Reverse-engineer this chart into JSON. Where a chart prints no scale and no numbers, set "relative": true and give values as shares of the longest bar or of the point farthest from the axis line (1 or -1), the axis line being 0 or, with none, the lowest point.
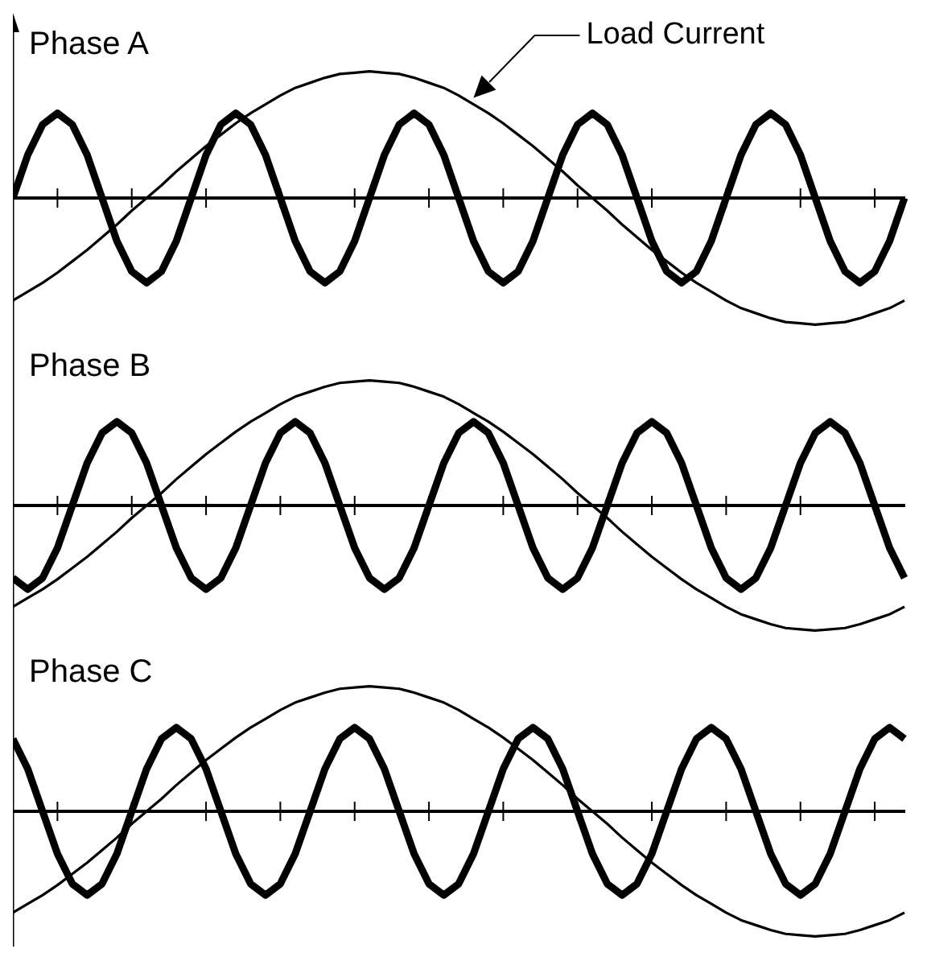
{
  "chart_data": [
    {
      "type": "line",
      "title": "Phase A",
      "relative": true,
      "marker": "none",
      "categories": [
        null,
        null,
        null,
        null,
        null,
        null,
        null,
        null,
        null,
        null,
        null,
        null,
        null,
        null,
        null,
        null,
        null,
        null,
        null,
        null,
        null,
        null,
        null,
        null,
        null,
        null,
        null,
        null,
        null,
        null,
        null,
        null,
        null,
        null,
        null,
        null,
        null,
        null,
        null,
        null,
        null,
        null,
        null,
        null,
        null,
        null,
        null,
        null,
        null,
        null,
        null,
        null,
        null,
        null,
        null,
        null,
        null,
        null,
        null,
        null,
        null
      ],
      "annotations": [
        "Load Current"
      ],
      "series": [
        {
          "color": "#000000",
          "values": [
            0,
            0.34,
            0.58,
            0.67,
            0.58,
            0.34,
            0,
            -0.34,
            -0.58,
            -0.67,
            -0.58,
            -0.34,
            0,
            0.34,
            0.58,
            0.67,
            0.58,
            0.34,
            0,
            -0.34,
            -0.58,
            -0.67,
            -0.58,
            -0.34,
            0,
            0.34,
            0.58,
            0.67,
            0.58,
            0.34,
            0,
            -0.34,
            -0.58,
            -0.67,
            -0.58,
            -0.34,
            0,
            0.34,
            0.58,
            0.67,
            0.58,
            0.34,
            0,
            -0.34,
            -0.58,
            -0.67,
            -0.58,
            -0.34,
            0,
            0.34,
            0.58,
            0.67,
            0.58,
            0.34,
            0,
            -0.34,
            -0.58,
            -0.67,
            -0.58,
            -0.34,
            0
          ]
        },
        {
          "color": "#000000",
          "values": [
            -0.81,
            -0.74,
            -0.67,
            -0.59,
            -0.5,
            -0.41,
            -0.31,
            -0.21,
            -0.1,
            0,
            0.1,
            0.21,
            0.31,
            0.41,
            0.5,
            0.59,
            0.67,
            0.74,
            0.81,
            0.87,
            0.91,
            0.95,
            0.98,
            0.99,
            1,
            0.99,
            0.98,
            0.95,
            0.91,
            0.87,
            0.81,
            0.74,
            0.67,
            0.59,
            0.5,
            0.41,
            0.31,
            0.21,
            0.1,
            0,
            -0.1,
            -0.21,
            -0.31,
            -0.41,
            -0.5,
            -0.59,
            -0.67,
            -0.74,
            -0.81,
            -0.87,
            -0.91,
            -0.95,
            -0.98,
            -0.99,
            -1,
            -0.99,
            -0.98,
            -0.95,
            -0.91,
            -0.87,
            -0.81
          ]
        }
      ]
    },
    {
      "type": "line",
      "title": "Phase B",
      "relative": true,
      "marker": "none",
      "categories": [
        null,
        null,
        null,
        null,
        null,
        null,
        null,
        null,
        null,
        null,
        null,
        null,
        null,
        null,
        null,
        null,
        null,
        null,
        null,
        null,
        null,
        null,
        null,
        null,
        null,
        null,
        null,
        null,
        null,
        null,
        null,
        null,
        null,
        null,
        null,
        null,
        null,
        null,
        null,
        null,
        null,
        null,
        null,
        null,
        null,
        null,
        null,
        null,
        null,
        null,
        null,
        null,
        null,
        null,
        null,
        null,
        null,
        null,
        null,
        null,
        null
      ],
      "series": [
        {
          "color": "#000000",
          "values": [
            -0.58,
            -0.67,
            -0.58,
            -0.34,
            0,
            0.34,
            0.58,
            0.67,
            0.58,
            0.34,
            0,
            -0.34,
            -0.58,
            -0.67,
            -0.58,
            -0.34,
            0,
            0.34,
            0.58,
            0.67,
            0.58,
            0.34,
            0,
            -0.34,
            -0.58,
            -0.67,
            -0.58,
            -0.34,
            0,
            0.34,
            0.58,
            0.67,
            0.58,
            0.34,
            0,
            -0.34,
            -0.58,
            -0.67,
            -0.58,
            -0.34,
            0,
            0.34,
            0.58,
            0.67,
            0.58,
            0.34,
            0,
            -0.34,
            -0.58,
            -0.67,
            -0.58,
            -0.34,
            0,
            0.34,
            0.58,
            0.67,
            0.58,
            0.34,
            0,
            -0.34,
            -0.58
          ]
        },
        {
          "color": "#000000",
          "values": [
            -0.81,
            -0.74,
            -0.67,
            -0.59,
            -0.5,
            -0.41,
            -0.31,
            -0.21,
            -0.1,
            0,
            0.1,
            0.21,
            0.31,
            0.41,
            0.5,
            0.59,
            0.67,
            0.74,
            0.81,
            0.87,
            0.91,
            0.95,
            0.98,
            0.99,
            1,
            0.99,
            0.98,
            0.95,
            0.91,
            0.87,
            0.81,
            0.74,
            0.67,
            0.59,
            0.5,
            0.41,
            0.31,
            0.21,
            0.1,
            0,
            -0.1,
            -0.21,
            -0.31,
            -0.41,
            -0.5,
            -0.59,
            -0.67,
            -0.74,
            -0.81,
            -0.87,
            -0.91,
            -0.95,
            -0.98,
            -0.99,
            -1,
            -0.99,
            -0.98,
            -0.95,
            -0.91,
            -0.87,
            -0.81
          ]
        }
      ]
    },
    {
      "type": "line",
      "title": "Phase C",
      "relative": true,
      "marker": "none",
      "categories": [
        null,
        null,
        null,
        null,
        null,
        null,
        null,
        null,
        null,
        null,
        null,
        null,
        null,
        null,
        null,
        null,
        null,
        null,
        null,
        null,
        null,
        null,
        null,
        null,
        null,
        null,
        null,
        null,
        null,
        null,
        null,
        null,
        null,
        null,
        null,
        null,
        null,
        null,
        null,
        null,
        null,
        null,
        null,
        null,
        null,
        null,
        null,
        null,
        null,
        null,
        null,
        null,
        null,
        null,
        null,
        null,
        null,
        null,
        null,
        null,
        null
      ],
      "series": [
        {
          "color": "#000000",
          "values": [
            0.58,
            0.34,
            0,
            -0.34,
            -0.58,
            -0.67,
            -0.58,
            -0.34,
            0,
            0.34,
            0.58,
            0.67,
            0.58,
            0.34,
            0,
            -0.34,
            -0.58,
            -0.67,
            -0.58,
            -0.34,
            0,
            0.34,
            0.58,
            0.67,
            0.58,
            0.34,
            0,
            -0.34,
            -0.58,
            -0.67,
            -0.58,
            -0.34,
            0,
            0.34,
            0.58,
            0.67,
            0.58,
            0.34,
            0,
            -0.34,
            -0.58,
            -0.67,
            -0.58,
            -0.34,
            0,
            0.34,
            0.58,
            0.67,
            0.58,
            0.34,
            0,
            -0.34,
            -0.58,
            -0.67,
            -0.58,
            -0.34,
            0,
            0.34,
            0.58,
            0.67,
            0.58
          ]
        },
        {
          "color": "#000000",
          "values": [
            -0.81,
            -0.74,
            -0.67,
            -0.59,
            -0.5,
            -0.41,
            -0.31,
            -0.21,
            -0.1,
            0,
            0.1,
            0.21,
            0.31,
            0.41,
            0.5,
            0.59,
            0.67,
            0.74,
            0.81,
            0.87,
            0.91,
            0.95,
            0.98,
            0.99,
            1,
            0.99,
            0.98,
            0.95,
            0.91,
            0.87,
            0.81,
            0.74,
            0.67,
            0.59,
            0.5,
            0.41,
            0.31,
            0.21,
            0.1,
            0,
            -0.1,
            -0.21,
            -0.31,
            -0.41,
            -0.5,
            -0.59,
            -0.67,
            -0.74,
            -0.81,
            -0.87,
            -0.91,
            -0.95,
            -0.98,
            -0.99,
            -1,
            -0.99,
            -0.98,
            -0.95,
            -0.91,
            -0.87,
            -0.81
          ]
        }
      ]
    }
  ]
}
